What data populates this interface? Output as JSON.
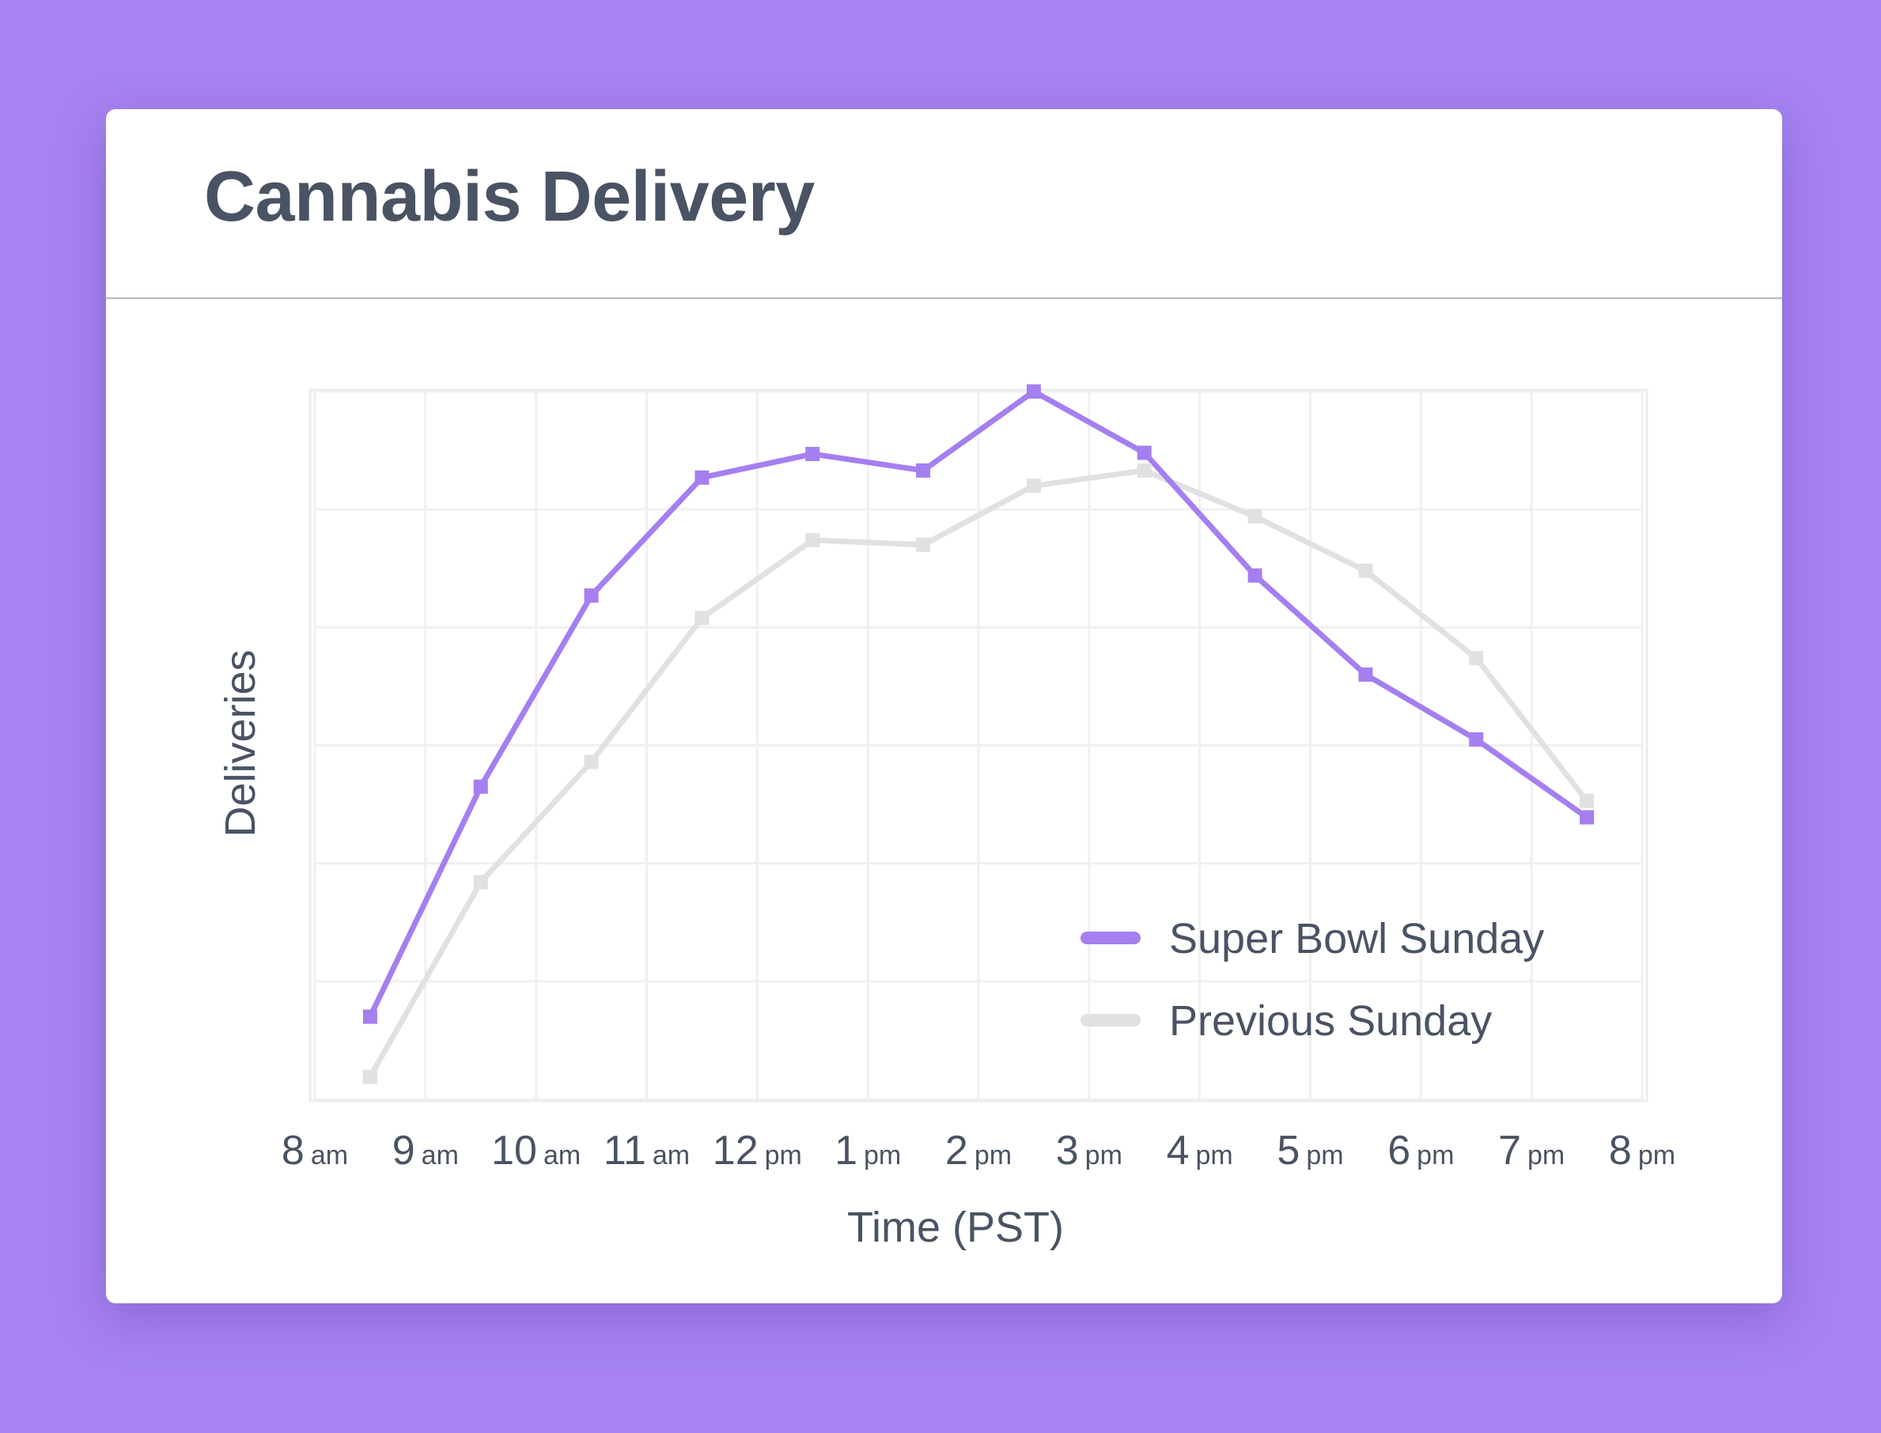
{
  "header": {
    "title": "Cannabis Delivery"
  },
  "chart_data": {
    "type": "line",
    "title": "Cannabis Delivery",
    "xlabel": "Time (PST)",
    "ylabel": "Deliveries",
    "x_ticks": [
      {
        "num": "8",
        "suffix": "am"
      },
      {
        "num": "9",
        "suffix": "am"
      },
      {
        "num": "10",
        "suffix": "am"
      },
      {
        "num": "11",
        "suffix": "am"
      },
      {
        "num": "12",
        "suffix": "pm"
      },
      {
        "num": "1",
        "suffix": "pm"
      },
      {
        "num": "2",
        "suffix": "pm"
      },
      {
        "num": "3",
        "suffix": "pm"
      },
      {
        "num": "4",
        "suffix": "pm"
      },
      {
        "num": "5",
        "suffix": "pm"
      },
      {
        "num": "6",
        "suffix": "pm"
      },
      {
        "num": "7",
        "suffix": "pm"
      },
      {
        "num": "8",
        "suffix": "pm"
      }
    ],
    "x": [
      8.5,
      9.5,
      10.5,
      11.5,
      12.5,
      13.5,
      14.5,
      15.5,
      16.5,
      17.5,
      18.5,
      19.5
    ],
    "xlim": [
      8,
      20
    ],
    "ylim": [
      0,
      6
    ],
    "y_ticks_labeled": false,
    "grid": true,
    "legend_position": "bottom-right",
    "series": [
      {
        "name": "Super Bowl Sunday",
        "color": "#a57ff0",
        "values": [
          0.7,
          2.65,
          4.27,
          5.27,
          5.47,
          5.33,
          6.0,
          5.48,
          4.44,
          3.6,
          3.05,
          2.39
        ]
      },
      {
        "name": "Previous Sunday",
        "color": "#e1e1e3",
        "values": [
          0.19,
          1.84,
          2.86,
          4.08,
          4.74,
          4.7,
          5.2,
          5.33,
          4.94,
          4.48,
          3.74,
          2.53
        ]
      }
    ]
  }
}
